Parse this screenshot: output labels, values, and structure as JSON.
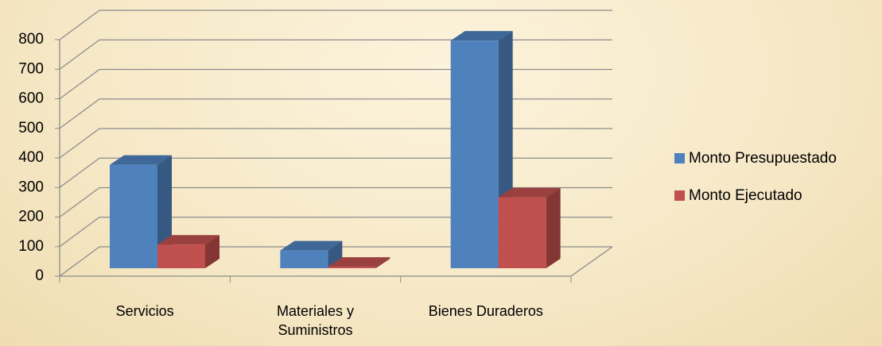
{
  "chart_data": {
    "type": "bar3d",
    "categories": [
      "Servicios",
      "Materiales y Suministros",
      "Bienes Duraderos"
    ],
    "series": [
      {
        "name": "Monto Presupuestado",
        "color": "#4f81bd",
        "values": [
          350,
          60,
          770
        ]
      },
      {
        "name": "Monto Ejecutado",
        "color": "#c0504d",
        "values": [
          80,
          5,
          240
        ]
      }
    ],
    "ylim": [
      0,
      800
    ],
    "yticks": [
      0,
      100,
      200,
      300,
      400,
      500,
      600,
      700,
      800
    ],
    "grid": true,
    "legend": "right"
  }
}
